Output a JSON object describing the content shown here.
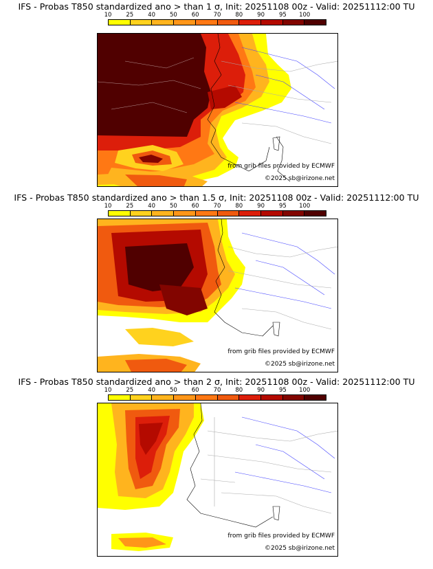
{
  "scale": {
    "ticks": [
      "10",
      "25",
      "40",
      "50",
      "60",
      "70",
      "80",
      "90",
      "95",
      "100"
    ],
    "colors": [
      "#ffff00",
      "#ffd21e",
      "#ffb41e",
      "#ff9619",
      "#ff7814",
      "#f05a0f",
      "#dc1e0a",
      "#b40a00",
      "#820500",
      "#500000"
    ]
  },
  "panels": [
    {
      "title": "IFS - Probas T850  standardized ano > than 1 σ, Init: 20251108 00z - Valid: 20251112:00 TU",
      "credit": "from grib files provided by ECMWF",
      "copyright": "©2025 sb@irizone.net"
    },
    {
      "title": "IFS - Probas T850  standardized ano > than 1.5 σ, Init: 20251108 00z - Valid: 20251112:00 TU",
      "credit": "from grib files provided by ECMWF",
      "copyright": "©2025 sb@irizone.net"
    },
    {
      "title": "IFS - Probas T850  standardized ano > than 2 σ, Init: 20251108 00z - Valid: 20251112:00 TU",
      "credit": "from grib files provided by ECMWF",
      "copyright": "©2025 sb@irizone.net"
    }
  ]
}
